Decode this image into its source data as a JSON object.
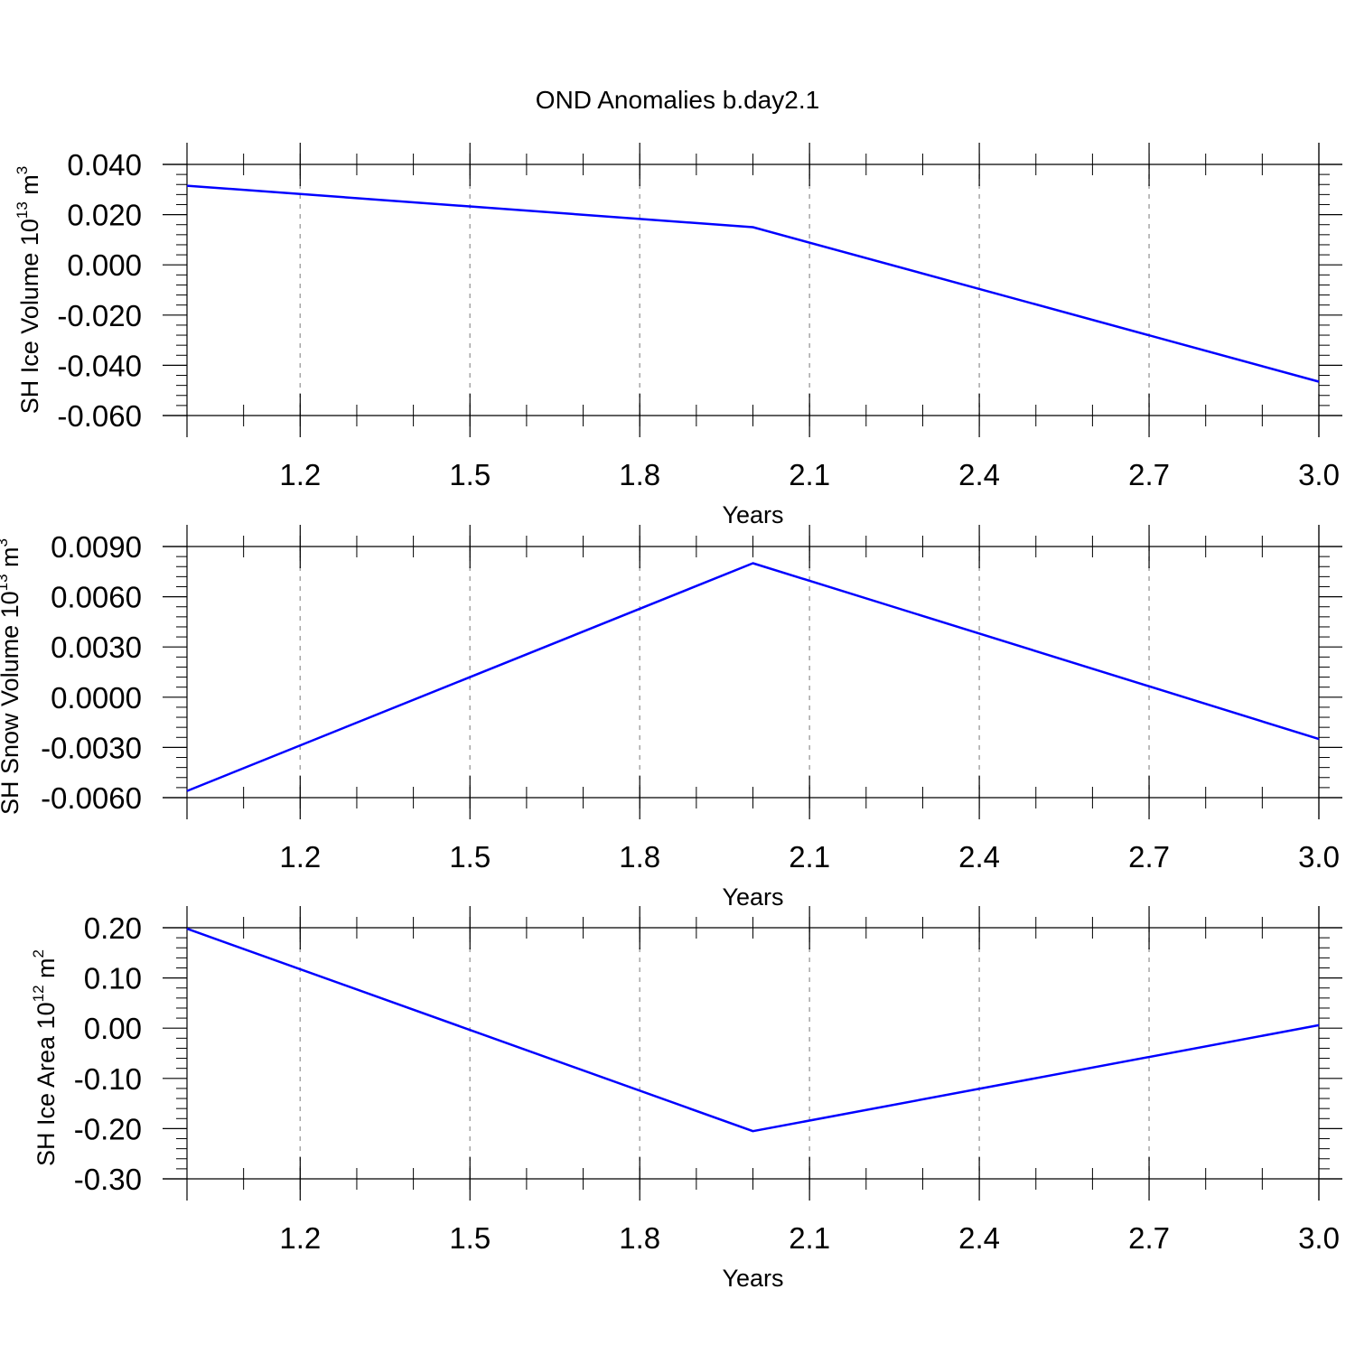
{
  "chart_data": {
    "title": "OND Anomalies b.day2.1",
    "type": "line",
    "color": "#0000ff",
    "grid": "vertical dashed",
    "xlim": [
      1.0,
      3.0
    ],
    "xticks": [
      "1.2",
      "1.5",
      "1.8",
      "2.1",
      "2.4",
      "2.7",
      "3.0"
    ],
    "xlabel": "Years",
    "panels": [
      {
        "ylabel": "SH Ice Volume 10",
        "ylabel_exp": "13",
        "ylabel_unit": " m",
        "ylabel_unit_exp": "3",
        "ylim": [
          -0.06,
          0.04
        ],
        "yticks": [
          "0.040",
          "0.020",
          "0.000",
          "-0.020",
          "-0.040",
          "-0.060"
        ],
        "series": [
          {
            "x": [
              1,
              2,
              3
            ],
            "y": [
              0.0315,
              0.015,
              -0.0465
            ]
          }
        ]
      },
      {
        "ylabel": "SH Snow Volume 10",
        "ylabel_exp": "13",
        "ylabel_unit": " m",
        "ylabel_unit_exp": "3",
        "ylim": [
          -0.006,
          0.009
        ],
        "yticks": [
          "0.0090",
          "0.0060",
          "0.0030",
          "0.0000",
          "-0.0030",
          "-0.0060"
        ],
        "series": [
          {
            "x": [
              1,
              2,
              3
            ],
            "y": [
              -0.0056,
              0.008,
              -0.0025
            ]
          }
        ]
      },
      {
        "ylabel": "SH Ice Area 10",
        "ylabel_exp": "12",
        "ylabel_unit": " m",
        "ylabel_unit_exp": "2",
        "ylim": [
          -0.3,
          0.2
        ],
        "yticks": [
          "0.20",
          "0.10",
          "0.00",
          "-0.10",
          "-0.20",
          "-0.30"
        ],
        "series": [
          {
            "x": [
              1,
              2,
              3
            ],
            "y": [
              0.198,
              -0.205,
              0.006
            ]
          }
        ]
      }
    ]
  }
}
